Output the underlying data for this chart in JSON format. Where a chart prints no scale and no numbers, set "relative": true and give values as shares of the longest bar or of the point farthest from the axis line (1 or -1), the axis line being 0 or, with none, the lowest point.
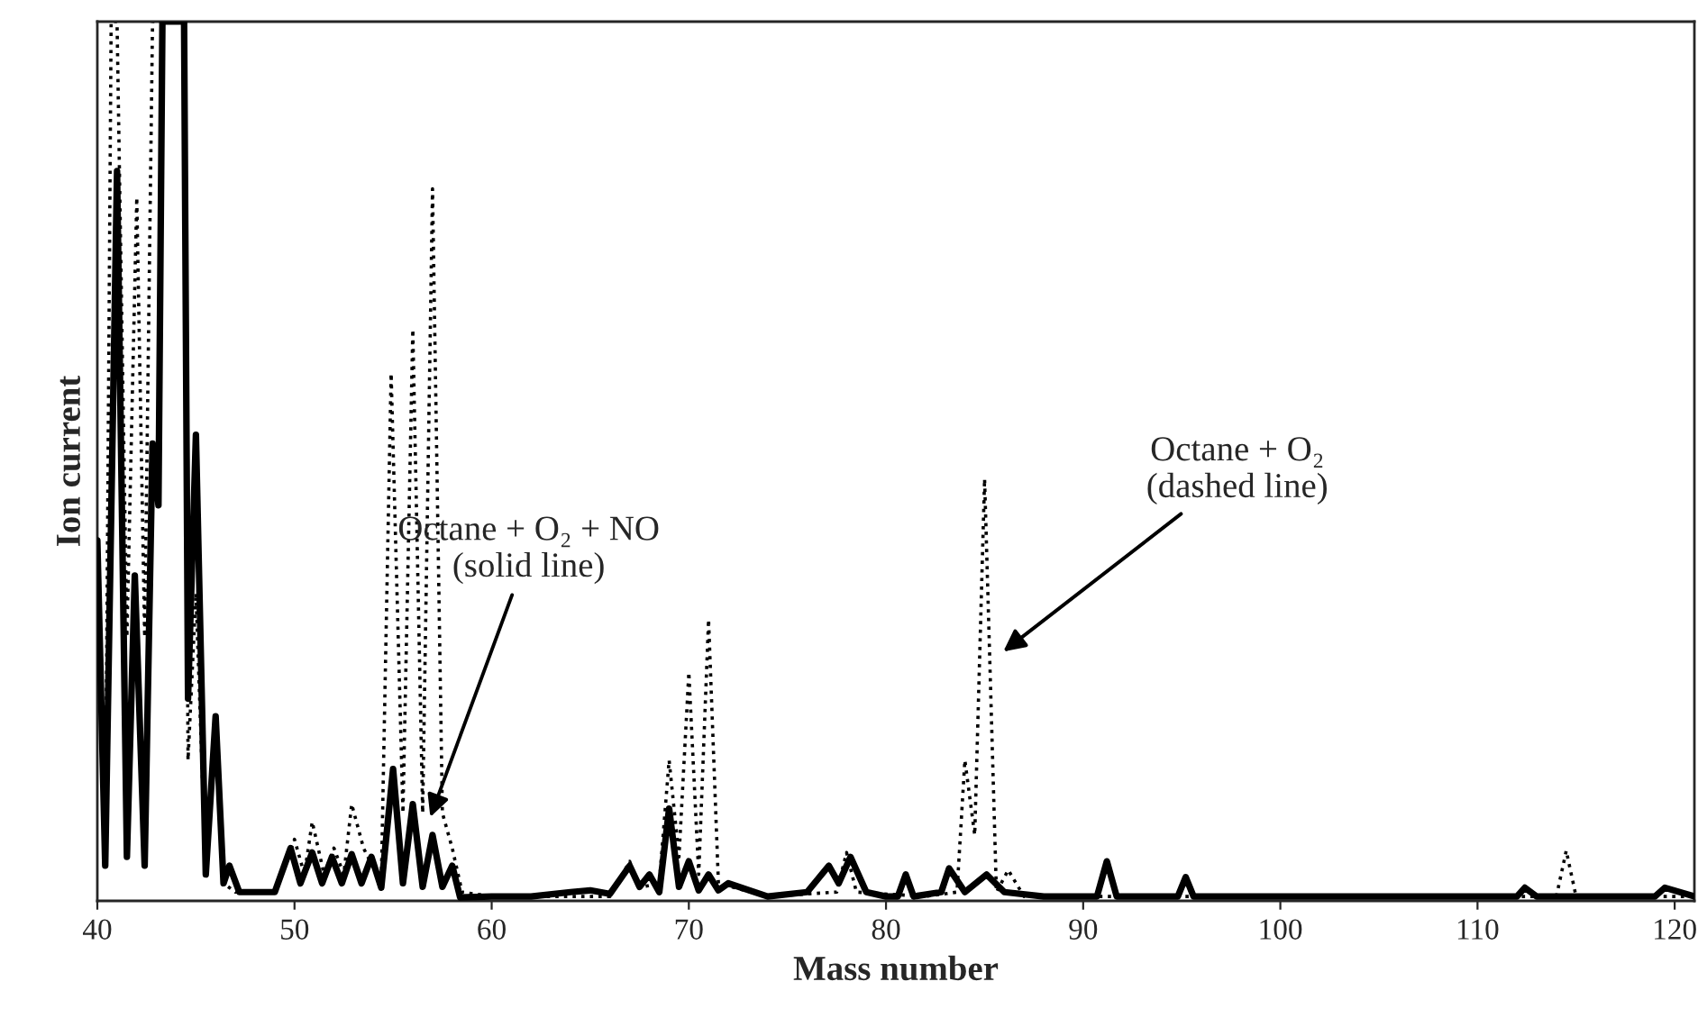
{
  "chart_data": {
    "type": "line",
    "relative": true,
    "xlabel": "Mass number",
    "ylabel": "Ion current",
    "xlim": [
      40,
      121
    ],
    "xticks": [
      40,
      50,
      60,
      70,
      80,
      90,
      100,
      110,
      120
    ],
    "grid": false,
    "marker": "none",
    "series": [
      {
        "color": "#000000",
        "line_style": "solid",
        "x": [
          40.0,
          40.4,
          41.0,
          41.5,
          41.9,
          42.4,
          42.8,
          43.1,
          43.3,
          44.4,
          44.6,
          45.0,
          45.5,
          46.0,
          46.4,
          46.7,
          47.2,
          48.0,
          49.0,
          49.8,
          50.3,
          50.9,
          51.4,
          51.9,
          52.4,
          52.9,
          53.4,
          53.9,
          54.4,
          55.0,
          55.5,
          56.0,
          56.5,
          57.0,
          57.5,
          58.0,
          58.4,
          60.0,
          62.0,
          64.0,
          65.0,
          66.0,
          67.0,
          67.5,
          68.0,
          68.5,
          69.0,
          69.5,
          70.0,
          70.5,
          71.0,
          71.5,
          72.0,
          74.0,
          76.0,
          77.1,
          77.6,
          78.2,
          79.0,
          80.0,
          80.6,
          81.0,
          81.4,
          82.8,
          83.2,
          84.0,
          85.1,
          86.0,
          88.0,
          90.7,
          91.2,
          91.7,
          94.8,
          95.2,
          95.6,
          96.0,
          100.0,
          105.0,
          110.0,
          112.0,
          112.4,
          113.0,
          116.0,
          119.0,
          119.5,
          121.0
        ],
        "values": [
          0.41,
          0.04,
          0.83,
          0.05,
          0.37,
          0.04,
          0.52,
          0.45,
          1.0,
          1.0,
          0.23,
          0.53,
          0.03,
          0.21,
          0.02,
          0.04,
          0.01,
          0.01,
          0.01,
          0.06,
          0.02,
          0.055,
          0.02,
          0.05,
          0.02,
          0.053,
          0.02,
          0.05,
          0.015,
          0.15,
          0.02,
          0.11,
          0.016,
          0.075,
          0.016,
          0.04,
          0.004,
          0.005,
          0.005,
          0.01,
          0.012,
          0.008,
          0.04,
          0.016,
          0.03,
          0.01,
          0.105,
          0.016,
          0.045,
          0.012,
          0.03,
          0.012,
          0.02,
          0.005,
          0.01,
          0.04,
          0.02,
          0.05,
          0.01,
          0.005,
          0.005,
          0.03,
          0.005,
          0.01,
          0.037,
          0.01,
          0.03,
          0.01,
          0.005,
          0.005,
          0.045,
          0.005,
          0.005,
          0.027,
          0.005,
          0.005,
          0.005,
          0.005,
          0.005,
          0.005,
          0.015,
          0.005,
          0.005,
          0.005,
          0.015,
          0.005
        ]
      },
      {
        "color": "#000000",
        "line_style": "dotted",
        "x": [
          40.0,
          40.4,
          40.7,
          41.0,
          41.5,
          42.0,
          42.4,
          42.8,
          43.3,
          44.4,
          44.6,
          45.0,
          45.5,
          46.0,
          46.4,
          47.0,
          49.0,
          50.0,
          50.5,
          50.9,
          51.5,
          52.0,
          52.5,
          52.9,
          53.5,
          54.4,
          54.9,
          55.5,
          56.0,
          56.5,
          57.0,
          57.5,
          58.0,
          58.5,
          60.0,
          66.0,
          67.0,
          67.5,
          68.5,
          69.0,
          69.5,
          70.0,
          70.5,
          71.0,
          71.5,
          74.0,
          77.5,
          78.0,
          78.5,
          82.0,
          83.6,
          84.0,
          84.5,
          85.0,
          85.6,
          86.2,
          87.0,
          100.0,
          112.0,
          114.0,
          114.5,
          115.0,
          121.0
        ],
        "values": [
          0.41,
          0.04,
          1.0,
          1.0,
          0.3,
          0.8,
          0.3,
          1.0,
          1.0,
          1.0,
          0.16,
          0.35,
          0.03,
          0.21,
          0.02,
          0.01,
          0.01,
          0.07,
          0.03,
          0.09,
          0.03,
          0.06,
          0.03,
          0.11,
          0.06,
          0.02,
          0.6,
          0.1,
          0.65,
          0.1,
          0.81,
          0.1,
          0.06,
          0.01,
          0.005,
          0.005,
          0.045,
          0.015,
          0.02,
          0.16,
          0.05,
          0.26,
          0.03,
          0.32,
          0.02,
          0.005,
          0.01,
          0.055,
          0.01,
          0.005,
          0.01,
          0.16,
          0.075,
          0.48,
          0.01,
          0.035,
          0.005,
          0.005,
          0.005,
          0.005,
          0.057,
          0.005,
          0.005
        ]
      }
    ],
    "annotations": [
      {
        "text": "Octane + O₂ + NO\n(solid line)",
        "x": 56.8,
        "y": 0.09
      },
      {
        "text": "Octane + O₂\n(dashed line)",
        "x": 85.75,
        "y": 0.28
      }
    ]
  }
}
